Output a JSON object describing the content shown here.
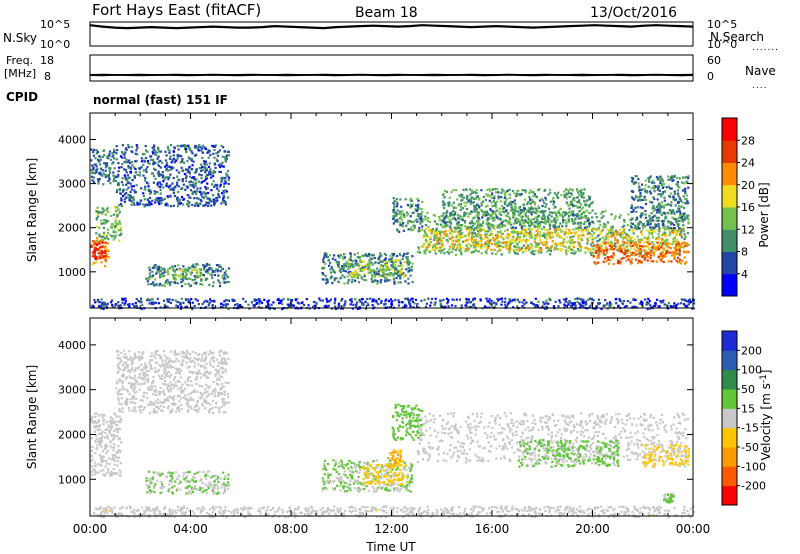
{
  "header": {
    "station": "Fort Hays East (fitACF)",
    "beam": "Beam 18",
    "date": "13/Oct/2016",
    "cpid_label": "CPID",
    "cpid_text": "normal (fast) 151 IF"
  },
  "colors": {
    "power_scale": [
      "#0000ff",
      "#2246a8",
      "#3f8f6a",
      "#72c24d",
      "#f0dc1e",
      "#ff8c00",
      "#e63a00",
      "#ff0000"
    ],
    "velocity_scale": [
      "#ff0000",
      "#ff5a00",
      "#ff9b00",
      "#ffc600",
      "#c8c8c8",
      "#62c63a",
      "#2c8c48",
      "#2a5cb4",
      "#1c2cd4"
    ],
    "ground_scatter": "#c8c8c8"
  },
  "chart_data": [
    {
      "type": "line",
      "panel": "noise",
      "left_label": "N.Sky",
      "right_label": "N.Search",
      "left_ticks": [
        "10^5",
        "10^0"
      ],
      "right_ticks": [
        "10^5",
        "10^0"
      ],
      "series": [
        {
          "values": [
            4.4,
            4.1,
            3.9,
            3.8,
            3.9,
            4.0,
            3.9,
            3.8,
            3.9,
            4.0,
            4.1,
            4.0,
            3.9,
            3.9,
            4.0,
            4.2,
            4.1,
            4.0,
            3.9,
            3.8,
            4.0,
            4.1,
            4.2,
            4.3,
            4.2,
            4.1,
            4.2,
            4.4,
            4.3,
            4.2,
            4.1,
            4.0,
            4.1,
            4.2,
            4.1,
            4.0,
            3.9,
            4.0,
            4.1,
            4.2,
            4.3,
            4.4,
            4.3,
            4.2,
            4.1,
            4.3,
            4.4,
            4.3,
            4.2,
            4.1
          ]
        },
        {
          "values": [
            4.2,
            3.9,
            3.7,
            3.6,
            3.7,
            3.8,
            3.7,
            3.6,
            3.7,
            3.8,
            3.9,
            3.8,
            3.7,
            3.7,
            3.8,
            4.0,
            3.9,
            3.8,
            3.7,
            3.6,
            3.8,
            3.9,
            4.0,
            4.1,
            4.0,
            3.9,
            4.0,
            4.2,
            4.1,
            4.0,
            3.9,
            3.8,
            3.9,
            4.0,
            3.9,
            3.8,
            3.7,
            3.8,
            3.9,
            4.0,
            4.1,
            4.2,
            4.1,
            4.0,
            3.9,
            4.1,
            4.2,
            4.1,
            4.0,
            3.9
          ]
        }
      ]
    },
    {
      "type": "line",
      "panel": "frequency",
      "left_label": "Freq. [MHz]",
      "right_label": "Nave",
      "left_ticks": [
        18,
        8
      ],
      "right_ticks": [
        60,
        0
      ],
      "series": [
        {
          "values": [
            10.4,
            10.5,
            10.4,
            10.4,
            10.5,
            10.4,
            10.4,
            10.5,
            10.4,
            10.4,
            10.5,
            10.4,
            10.4,
            10.5,
            10.4,
            10.4,
            10.5,
            10.4,
            10.4,
            10.5,
            10.4,
            10.4,
            10.5,
            10.4,
            10.4,
            10.5,
            10.4,
            10.4,
            10.5,
            10.4,
            10.4,
            10.5,
            10.4,
            10.4,
            10.5,
            10.4,
            10.4,
            10.5,
            10.4,
            10.4,
            10.5,
            10.4,
            10.4,
            10.5,
            10.4,
            10.4,
            10.5,
            10.4,
            10.4,
            10.5
          ]
        },
        {
          "values": [
            10.1,
            10.0,
            10.2,
            10.1,
            10.0,
            10.1,
            10.2,
            10.1,
            10.0,
            10.1,
            10.2,
            10.1,
            10.0,
            10.1,
            10.2,
            10.1,
            10.0,
            10.1,
            10.2,
            10.1,
            10.0,
            10.1,
            10.2,
            10.1,
            10.0,
            10.1,
            10.2,
            10.1,
            10.0,
            10.1,
            10.2,
            10.1,
            10.0,
            10.1,
            10.2,
            10.1,
            10.0,
            10.1,
            10.2,
            10.1,
            10.0,
            10.1,
            10.2,
            10.1,
            10.0,
            10.1,
            10.2,
            10.1,
            10.0,
            10.1
          ]
        }
      ]
    },
    {
      "type": "heatmap",
      "panel": "power",
      "ylabel": "Slant Range [km]",
      "y_ticks": [
        1000,
        2000,
        3000,
        4000
      ],
      "ylim": [
        180,
        4600
      ],
      "x_ticks": [
        "00:00",
        "04:00",
        "08:00",
        "12:00",
        "16:00",
        "20:00",
        "00:00"
      ],
      "xlim": [
        0,
        24
      ],
      "colorbar": {
        "label": "Power [dB]",
        "ticks": [
          4,
          8,
          12,
          16,
          20,
          24,
          28
        ],
        "range": [
          0,
          32
        ]
      },
      "regions": [
        {
          "t0": 0.0,
          "t1": 0.7,
          "r0": 1150,
          "r1": 1800,
          "v": 22
        },
        {
          "t0": 0.0,
          "t1": 0.6,
          "r0": 1300,
          "r1": 1700,
          "v": 27
        },
        {
          "t0": 0.2,
          "t1": 1.2,
          "r0": 1700,
          "r1": 2500,
          "v": 13
        },
        {
          "t0": 0.0,
          "t1": 1.0,
          "r0": 3000,
          "r1": 3800,
          "v": 8
        },
        {
          "t0": 1.0,
          "t1": 5.5,
          "r0": 2500,
          "r1": 3900,
          "v": 7
        },
        {
          "t0": 2.2,
          "t1": 5.5,
          "r0": 700,
          "r1": 1200,
          "v": 9
        },
        {
          "t0": 3.0,
          "t1": 4.4,
          "r0": 850,
          "r1": 1100,
          "v": 14
        },
        {
          "t0": 9.2,
          "t1": 12.8,
          "r0": 750,
          "r1": 1450,
          "v": 9
        },
        {
          "t0": 10.2,
          "t1": 12.5,
          "r0": 900,
          "r1": 1300,
          "v": 15
        },
        {
          "t0": 12.0,
          "t1": 13.2,
          "r0": 1900,
          "r1": 2700,
          "v": 10
        },
        {
          "t0": 13.0,
          "t1": 23.8,
          "r0": 1400,
          "r1": 2400,
          "v": 12
        },
        {
          "t0": 13.2,
          "t1": 23.5,
          "r0": 1500,
          "r1": 2000,
          "v": 18
        },
        {
          "t0": 14.0,
          "t1": 20.0,
          "r0": 2000,
          "r1": 2900,
          "v": 11
        },
        {
          "t0": 20.0,
          "t1": 23.8,
          "r0": 1200,
          "r1": 1700,
          "v": 24
        },
        {
          "t0": 21.5,
          "t1": 23.8,
          "r0": 2000,
          "r1": 3200,
          "v": 9
        },
        {
          "t0": 0.0,
          "t1": 24.0,
          "r0": 180,
          "r1": 420,
          "v": 5
        }
      ]
    },
    {
      "type": "heatmap",
      "panel": "velocity",
      "ylabel": "Slant Range [km]",
      "y_ticks": [
        1000,
        2000,
        3000,
        4000
      ],
      "ylim": [
        180,
        4600
      ],
      "x_ticks": [
        "00:00",
        "04:00",
        "08:00",
        "12:00",
        "16:00",
        "20:00",
        "00:00"
      ],
      "xlabel": "Time UT",
      "xlim": [
        0,
        24
      ],
      "colorbar": {
        "label": "Velocity [m s^-1]",
        "ticks": [
          -200,
          -100,
          -50,
          -15,
          15,
          50,
          100,
          200
        ],
        "range": [
          -250,
          250
        ]
      },
      "regions": [
        {
          "t0": 0.0,
          "t1": 1.2,
          "r0": 1100,
          "r1": 2500,
          "v": 0
        },
        {
          "t0": 1.0,
          "t1": 5.5,
          "r0": 2500,
          "r1": 3900,
          "v": 0
        },
        {
          "t0": 2.2,
          "t1": 5.5,
          "r0": 700,
          "r1": 1200,
          "v": 25
        },
        {
          "t0": 9.2,
          "t1": 12.8,
          "r0": 750,
          "r1": 1450,
          "v": 30
        },
        {
          "t0": 10.8,
          "t1": 12.6,
          "r0": 900,
          "r1": 1350,
          "v": -45
        },
        {
          "t0": 11.8,
          "t1": 12.4,
          "r0": 1300,
          "r1": 1700,
          "v": -80
        },
        {
          "t0": 12.0,
          "t1": 13.2,
          "r0": 1900,
          "r1": 2700,
          "v": 60
        },
        {
          "t0": 13.0,
          "t1": 23.8,
          "r0": 1400,
          "r1": 2500,
          "v": 0
        },
        {
          "t0": 17.0,
          "t1": 21.0,
          "r0": 1300,
          "r1": 1900,
          "v": 35
        },
        {
          "t0": 22.0,
          "t1": 23.8,
          "r0": 1300,
          "r1": 1800,
          "v": -40
        },
        {
          "t0": 22.8,
          "t1": 23.2,
          "r0": 500,
          "r1": 700,
          "v": 40
        },
        {
          "t0": 0.0,
          "t1": 24.0,
          "r0": 180,
          "r1": 420,
          "v": -8
        }
      ]
    }
  ]
}
